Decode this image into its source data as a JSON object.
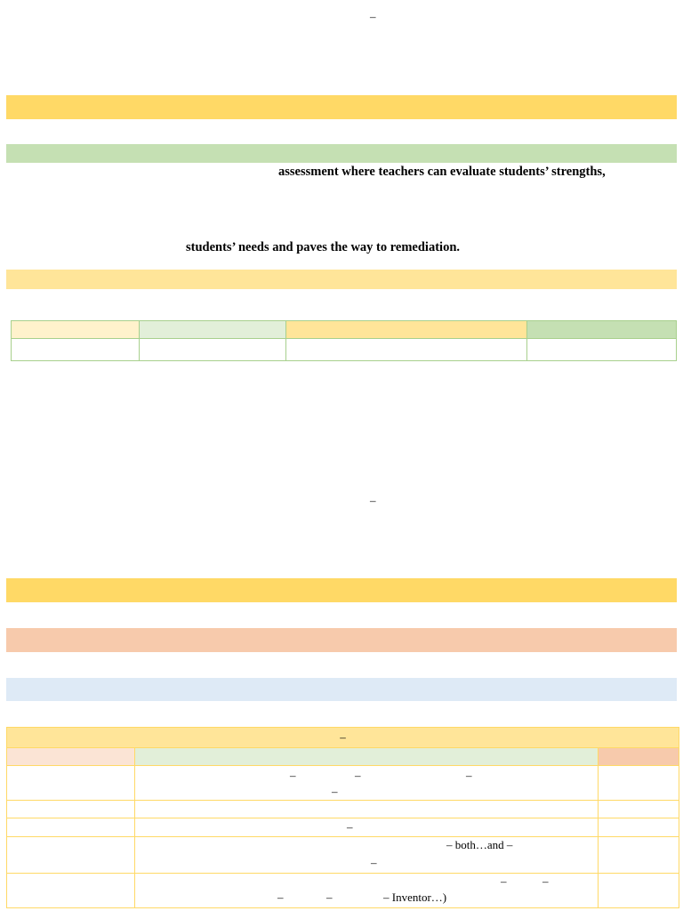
{
  "top_dash": "–",
  "para1_line1": "assessment where teachers can evaluate students’ strengths,",
  "para1_line2": "students’ needs and paves the way to remediation.",
  "mid_dash": "–",
  "colors": {
    "band_yellow": "#ffd966",
    "band_green": "#c5e0b3",
    "band_light_yellow": "#ffe599",
    "band_salmon": "#f7caac",
    "band_blue": "#deeaf6",
    "table_border_green": "#a8d08d",
    "table_border_yellow": "#ffd966"
  },
  "table2": {
    "title": "–",
    "rows": [
      {
        "dashes": [
          "–",
          "–",
          "–",
          "–"
        ]
      },
      {
        "dashes": []
      },
      {
        "dashes": [
          "–"
        ]
      },
      {
        "dashes": [
          "– both…and –",
          "–"
        ]
      },
      {
        "dashes": [
          "–",
          "–",
          "–",
          "–",
          "– Inventor…)"
        ]
      }
    ]
  }
}
